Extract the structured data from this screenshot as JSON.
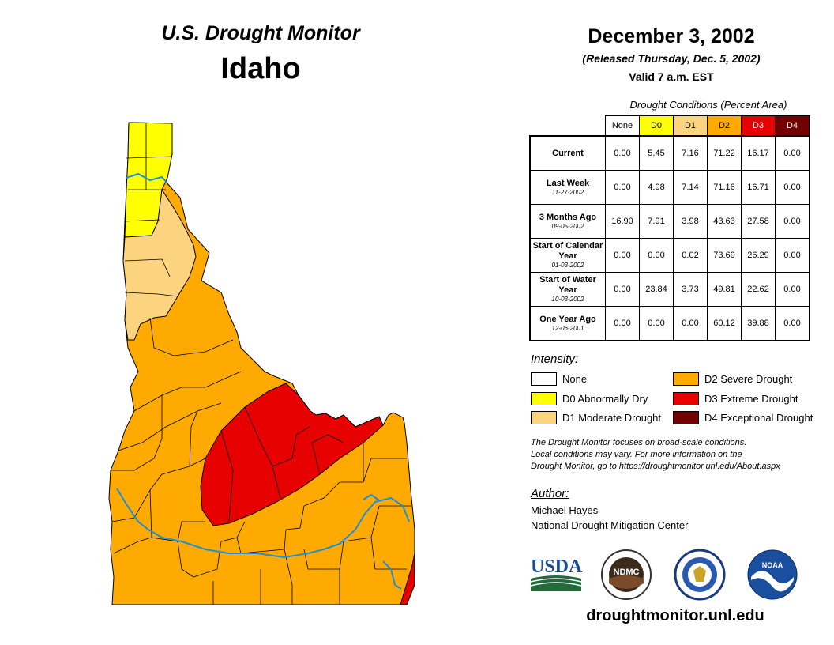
{
  "header": {
    "monitor_title": "U.S. Drought Monitor",
    "state": "Idaho",
    "date": "December 3, 2002",
    "released": "(Released Thursday, Dec. 5, 2002)",
    "valid": "Valid 7 a.m. EST"
  },
  "table": {
    "caption": "Drought Conditions (Percent Area)",
    "columns": [
      "None",
      "D0",
      "D1",
      "D2",
      "D3",
      "D4"
    ],
    "column_colors": [
      "#ffffff",
      "#ffff00",
      "#fcd37f",
      "#ffaa00",
      "#e60000",
      "#730000"
    ],
    "rows": [
      {
        "label": "Current",
        "date": "",
        "values": [
          "0.00",
          "5.45",
          "7.16",
          "71.22",
          "16.17",
          "0.00"
        ]
      },
      {
        "label": "Last Week",
        "date": "11-27-2002",
        "values": [
          "0.00",
          "4.98",
          "7.14",
          "71.16",
          "16.71",
          "0.00"
        ]
      },
      {
        "label": "3 Months Ago",
        "date": "09-05-2002",
        "values": [
          "16.90",
          "7.91",
          "3.98",
          "43.63",
          "27.58",
          "0.00"
        ]
      },
      {
        "label": "Start of Calendar Year",
        "date": "01-03-2002",
        "values": [
          "0.00",
          "0.00",
          "0.02",
          "73.69",
          "26.29",
          "0.00"
        ]
      },
      {
        "label": "Start of Water Year",
        "date": "10-03-2002",
        "values": [
          "0.00",
          "23.84",
          "3.73",
          "49.81",
          "22.62",
          "0.00"
        ]
      },
      {
        "label": "One Year Ago",
        "date": "12-06-2001",
        "values": [
          "0.00",
          "0.00",
          "0.00",
          "60.12",
          "39.88",
          "0.00"
        ]
      }
    ]
  },
  "legend": {
    "heading": "Intensity:",
    "items": [
      {
        "label": "None",
        "color": "#ffffff"
      },
      {
        "label": "D0 Abnormally Dry",
        "color": "#ffff00"
      },
      {
        "label": "D1 Moderate Drought",
        "color": "#fcd37f"
      },
      {
        "label": "D2 Severe Drought",
        "color": "#ffaa00"
      },
      {
        "label": "D3 Extreme Drought",
        "color": "#e60000"
      },
      {
        "label": "D4 Exceptional Drought",
        "color": "#730000"
      }
    ]
  },
  "note": {
    "line1": "The Drought Monitor focuses on broad-scale conditions.",
    "line2": "Local conditions may vary. For more information on the",
    "line3": "Drought Monitor, go to https://droughtmonitor.unl.edu/About.aspx"
  },
  "author": {
    "heading": "Author:",
    "name": "Michael Hayes",
    "org": "National Drought Mitigation Center"
  },
  "logos": {
    "usda": "USDA",
    "ndmc": "NDMC",
    "noaa": "NOAA"
  },
  "website": "droughtmonitor.unl.edu",
  "colors": {
    "river": "#1f8fd6",
    "county_line": "#000000"
  }
}
